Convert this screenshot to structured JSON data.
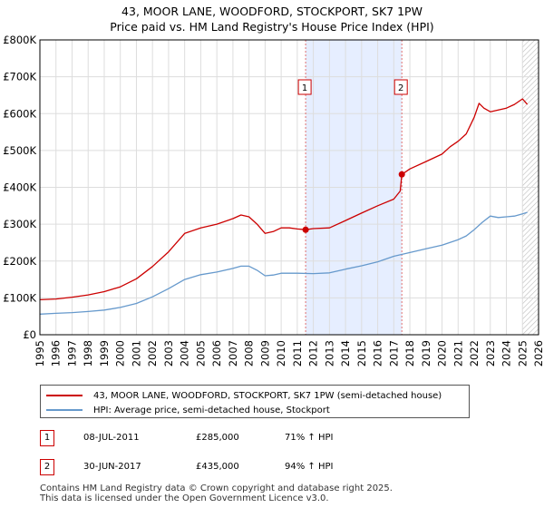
{
  "title_line1": "43, MOOR LANE, WOODFORD, STOCKPORT, SK7 1PW",
  "title_line2": "Price paid vs. HM Land Registry's House Price Index (HPI)",
  "colors": {
    "property": "#cc0000",
    "hpi": "#6699cc",
    "shade": "#e6eeff",
    "grid": "#dddddd",
    "vline": "#e07070"
  },
  "legend": {
    "property": "43, MOOR LANE, WOODFORD, STOCKPORT, SK7 1PW (semi-detached house)",
    "hpi": "HPI: Average price, semi-detached house, Stockport"
  },
  "sales": [
    {
      "num": "1",
      "date": "08-JUL-2011",
      "price": "£285,000",
      "hpi_change": "71% ↑ HPI"
    },
    {
      "num": "2",
      "date": "30-JUN-2017",
      "price": "£435,000",
      "hpi_change": "94% ↑ HPI"
    }
  ],
  "footer": {
    "line1": "Contains HM Land Registry data © Crown copyright and database right 2025.",
    "line2": "This data is licensed under the Open Government Licence v3.0."
  },
  "chart_data": {
    "type": "line",
    "xlim": [
      1995,
      2026
    ],
    "ylim": [
      0,
      800000
    ],
    "yticks": [
      0,
      100000,
      200000,
      300000,
      400000,
      500000,
      600000,
      700000,
      800000
    ],
    "ytick_labels": [
      "£0",
      "£100K",
      "£200K",
      "£300K",
      "£400K",
      "£500K",
      "£600K",
      "£700K",
      "£800K"
    ],
    "xticks": [
      1995,
      1996,
      1997,
      1998,
      1999,
      2000,
      2001,
      2002,
      2003,
      2004,
      2005,
      2006,
      2007,
      2008,
      2009,
      2010,
      2011,
      2012,
      2013,
      2014,
      2015,
      2016,
      2017,
      2018,
      2019,
      2020,
      2021,
      2022,
      2023,
      2024,
      2025,
      2026
    ],
    "shaded_range": [
      2011.52,
      2017.5
    ],
    "forecast_start": 2025.0,
    "markers": [
      {
        "label": "1",
        "x": 2011.52,
        "y": 285000
      },
      {
        "label": "2",
        "x": 2017.5,
        "y": 435000
      }
    ],
    "series": [
      {
        "name": "43, MOOR LANE, WOODFORD, STOCKPORT, SK7 1PW (semi-detached house)",
        "color": "#cc0000",
        "x": [
          1995,
          1996,
          1997,
          1998,
          1999,
          2000,
          2001,
          2002,
          2003,
          2004,
          2005,
          2006,
          2007,
          2007.5,
          2008,
          2008.5,
          2009,
          2009.5,
          2010,
          2010.5,
          2011,
          2011.52,
          2012,
          2013,
          2014,
          2015,
          2016,
          2017,
          2017.4,
          2017.5,
          2018,
          2019,
          2020,
          2020.5,
          2021,
          2021.5,
          2022,
          2022.3,
          2022.6,
          2023,
          2023.5,
          2024,
          2024.5,
          2025,
          2025.3
        ],
        "y": [
          95000,
          97000,
          102000,
          108000,
          117000,
          130000,
          152000,
          185000,
          225000,
          275000,
          290000,
          300000,
          315000,
          325000,
          320000,
          300000,
          275000,
          280000,
          290000,
          290000,
          287000,
          285000,
          288000,
          290000,
          310000,
          330000,
          350000,
          368000,
          390000,
          435000,
          450000,
          470000,
          490000,
          510000,
          525000,
          545000,
          590000,
          628000,
          615000,
          605000,
          610000,
          615000,
          625000,
          640000,
          625000
        ]
      },
      {
        "name": "HPI: Average price, semi-detached house, Stockport",
        "color": "#6699cc",
        "x": [
          1995,
          1996,
          1997,
          1998,
          1999,
          2000,
          2001,
          2002,
          2003,
          2004,
          2005,
          2006,
          2007,
          2007.5,
          2008,
          2008.5,
          2009,
          2009.5,
          2010,
          2011,
          2012,
          2013,
          2014,
          2015,
          2016,
          2017,
          2018,
          2019,
          2020,
          2021,
          2021.5,
          2022,
          2022.5,
          2023,
          2023.5,
          2024,
          2024.5,
          2025,
          2025.3
        ],
        "y": [
          56000,
          58000,
          60000,
          63000,
          67000,
          74000,
          85000,
          103000,
          125000,
          150000,
          163000,
          170000,
          180000,
          186000,
          186000,
          175000,
          160000,
          162000,
          167000,
          167000,
          166000,
          168000,
          178000,
          187000,
          198000,
          213000,
          223000,
          233000,
          243000,
          258000,
          268000,
          285000,
          305000,
          322000,
          318000,
          320000,
          322000,
          328000,
          332000
        ]
      }
    ]
  }
}
